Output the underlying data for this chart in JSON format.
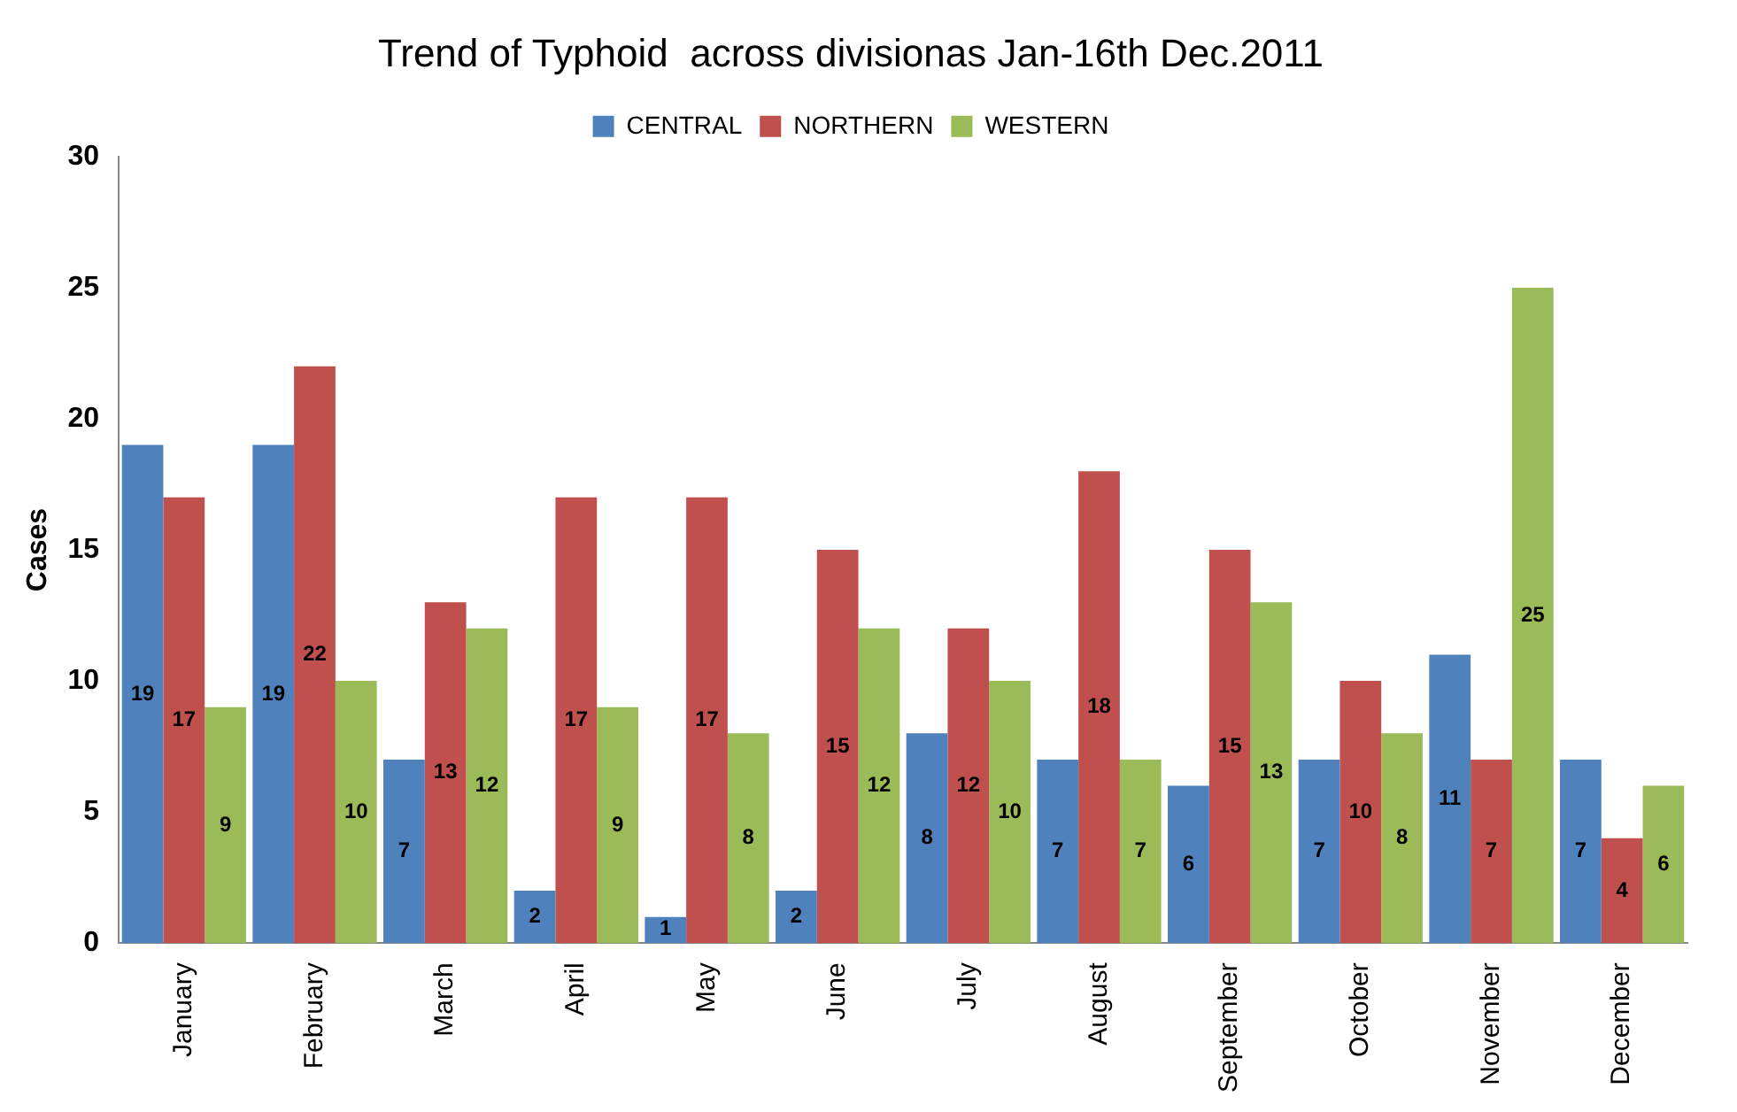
{
  "chart_data": {
    "type": "bar",
    "title": "Trend of Typhoid  across divisionas Jan-16th Dec.2011",
    "ylabel": "Cases",
    "categories": [
      "January",
      "February",
      "March",
      "April",
      "May",
      "June",
      "July",
      "August",
      "September",
      "October",
      "November",
      "December"
    ],
    "series": [
      {
        "name": "CENTRAL",
        "color": "#4f81bd",
        "values": [
          19,
          19,
          7,
          2,
          1,
          2,
          8,
          7,
          6,
          7,
          11,
          7
        ]
      },
      {
        "name": "NORTHERN",
        "color": "#c0504d",
        "values": [
          17,
          22,
          13,
          17,
          17,
          15,
          12,
          18,
          15,
          10,
          7,
          4
        ]
      },
      {
        "name": "WESTERN",
        "color": "#9bbb59",
        "values": [
          9,
          10,
          12,
          9,
          8,
          12,
          10,
          7,
          13,
          8,
          25,
          6
        ]
      }
    ],
    "ylim": [
      0,
      30
    ],
    "yticks": [
      0,
      5,
      10,
      15,
      20,
      25,
      30
    ],
    "grid": false,
    "legend": "top",
    "data_labels": true
  }
}
